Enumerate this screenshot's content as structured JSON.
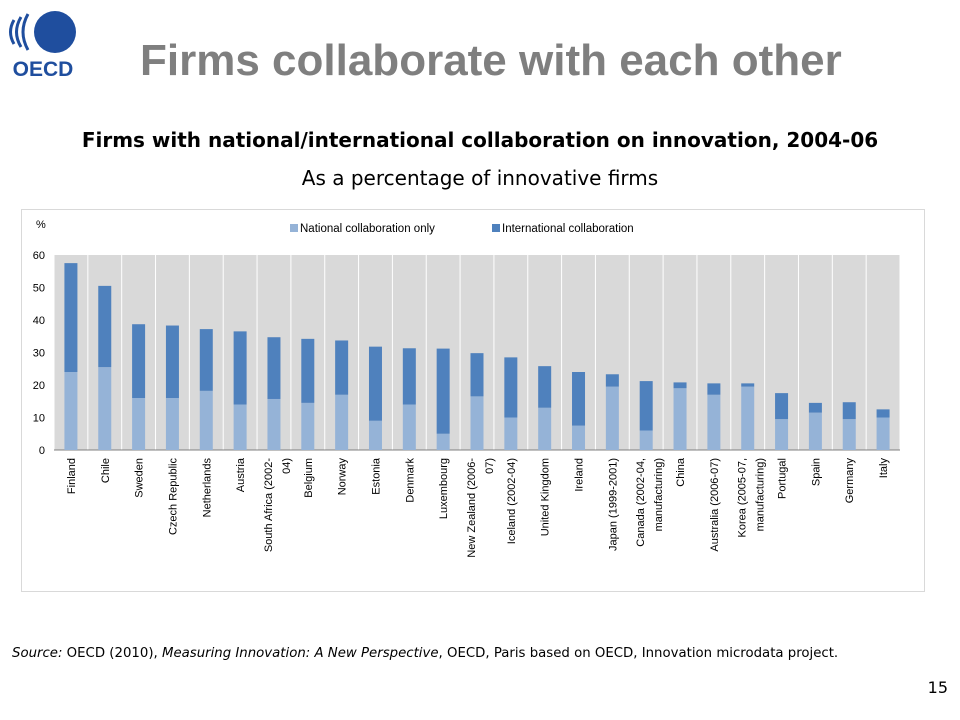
{
  "logo": {
    "text": "OECD"
  },
  "slide_title": "Firms collaborate with each other",
  "page_number": "15",
  "source": {
    "prefix": "Source:",
    "part1": " OECD (2010), ",
    "italic": "Measuring Innovation: A New Perspective",
    "part2": ", OECD, Paris based on OECD, Innovation microdata project."
  },
  "colors": {
    "national": "#95b3d7",
    "international": "#4f81bd",
    "plot_background": "#d9d9d9",
    "title": "#7f7f7f",
    "logo": "#1f4e9e"
  },
  "chart_data": {
    "type": "bar",
    "stacked": true,
    "title": "Firms with national/international collaboration on innovation, 2004-06",
    "subtitle": "As a percentage of innovative firms",
    "ylabel": "%",
    "ylim": [
      0,
      60
    ],
    "yticks": [
      0,
      10,
      20,
      30,
      40,
      50,
      60
    ],
    "grid": "vertical",
    "legend_position": "top",
    "categories": [
      "Finland",
      "Chile",
      "Sweden",
      "Czech Republic",
      "Netherlands",
      "Austria",
      "South Africa (2002-04)",
      "Belgium",
      "Norway",
      "Estonia",
      "Denmark",
      "Luxembourg",
      "New Zealand (2006-07)",
      "Iceland (2002-04)",
      "United Kingdom",
      "Ireland",
      "Japan (1999-2001)",
      "Canada (2002-04, manufacturing)",
      "China",
      "Australia (2006-07)",
      "Korea (2005-07, manufacturing)",
      "Portugal",
      "Spain",
      "Germany",
      "Italy"
    ],
    "tick_labels": [
      [
        "Finland"
      ],
      [
        "Chile"
      ],
      [
        "Sweden"
      ],
      [
        "Czech Republic"
      ],
      [
        "Netherlands"
      ],
      [
        "Austria"
      ],
      [
        "South Africa (2002-",
        "04)"
      ],
      [
        "Belgium"
      ],
      [
        "Norway"
      ],
      [
        "Estonia"
      ],
      [
        "Denmark"
      ],
      [
        "Luxembourg"
      ],
      [
        "New Zealand (2006-",
        "07)"
      ],
      [
        "Iceland (2002-04)"
      ],
      [
        "United Kingdom"
      ],
      [
        "Ireland"
      ],
      [
        "Japan (1999-2001)"
      ],
      [
        "Canada (2002-04,",
        "manufacturing)"
      ],
      [
        "China"
      ],
      [
        "Australia (2006-07)"
      ],
      [
        "Korea (2005-07,",
        "manufacturing)"
      ],
      [
        "Portugal"
      ],
      [
        "Spain"
      ],
      [
        "Germany"
      ],
      [
        "Italy"
      ]
    ],
    "series": [
      {
        "name": "National collaboration only",
        "values": [
          24,
          25.5,
          16,
          16,
          18.2,
          14,
          15.7,
          14.5,
          17,
          9,
          14,
          5,
          16.5,
          10,
          13,
          7.5,
          19.5,
          6,
          19,
          17,
          19.5,
          9.5,
          11.5,
          9.5,
          10
        ]
      },
      {
        "name": "International collaboration",
        "values": [
          33.5,
          25,
          22.7,
          22.3,
          19,
          22.5,
          19,
          19.7,
          16.7,
          22.8,
          17.3,
          26.2,
          13.3,
          18.5,
          12.8,
          16.5,
          3.8,
          15.2,
          1.8,
          3.5,
          1,
          8,
          3,
          5.2,
          2.5
        ]
      }
    ]
  }
}
